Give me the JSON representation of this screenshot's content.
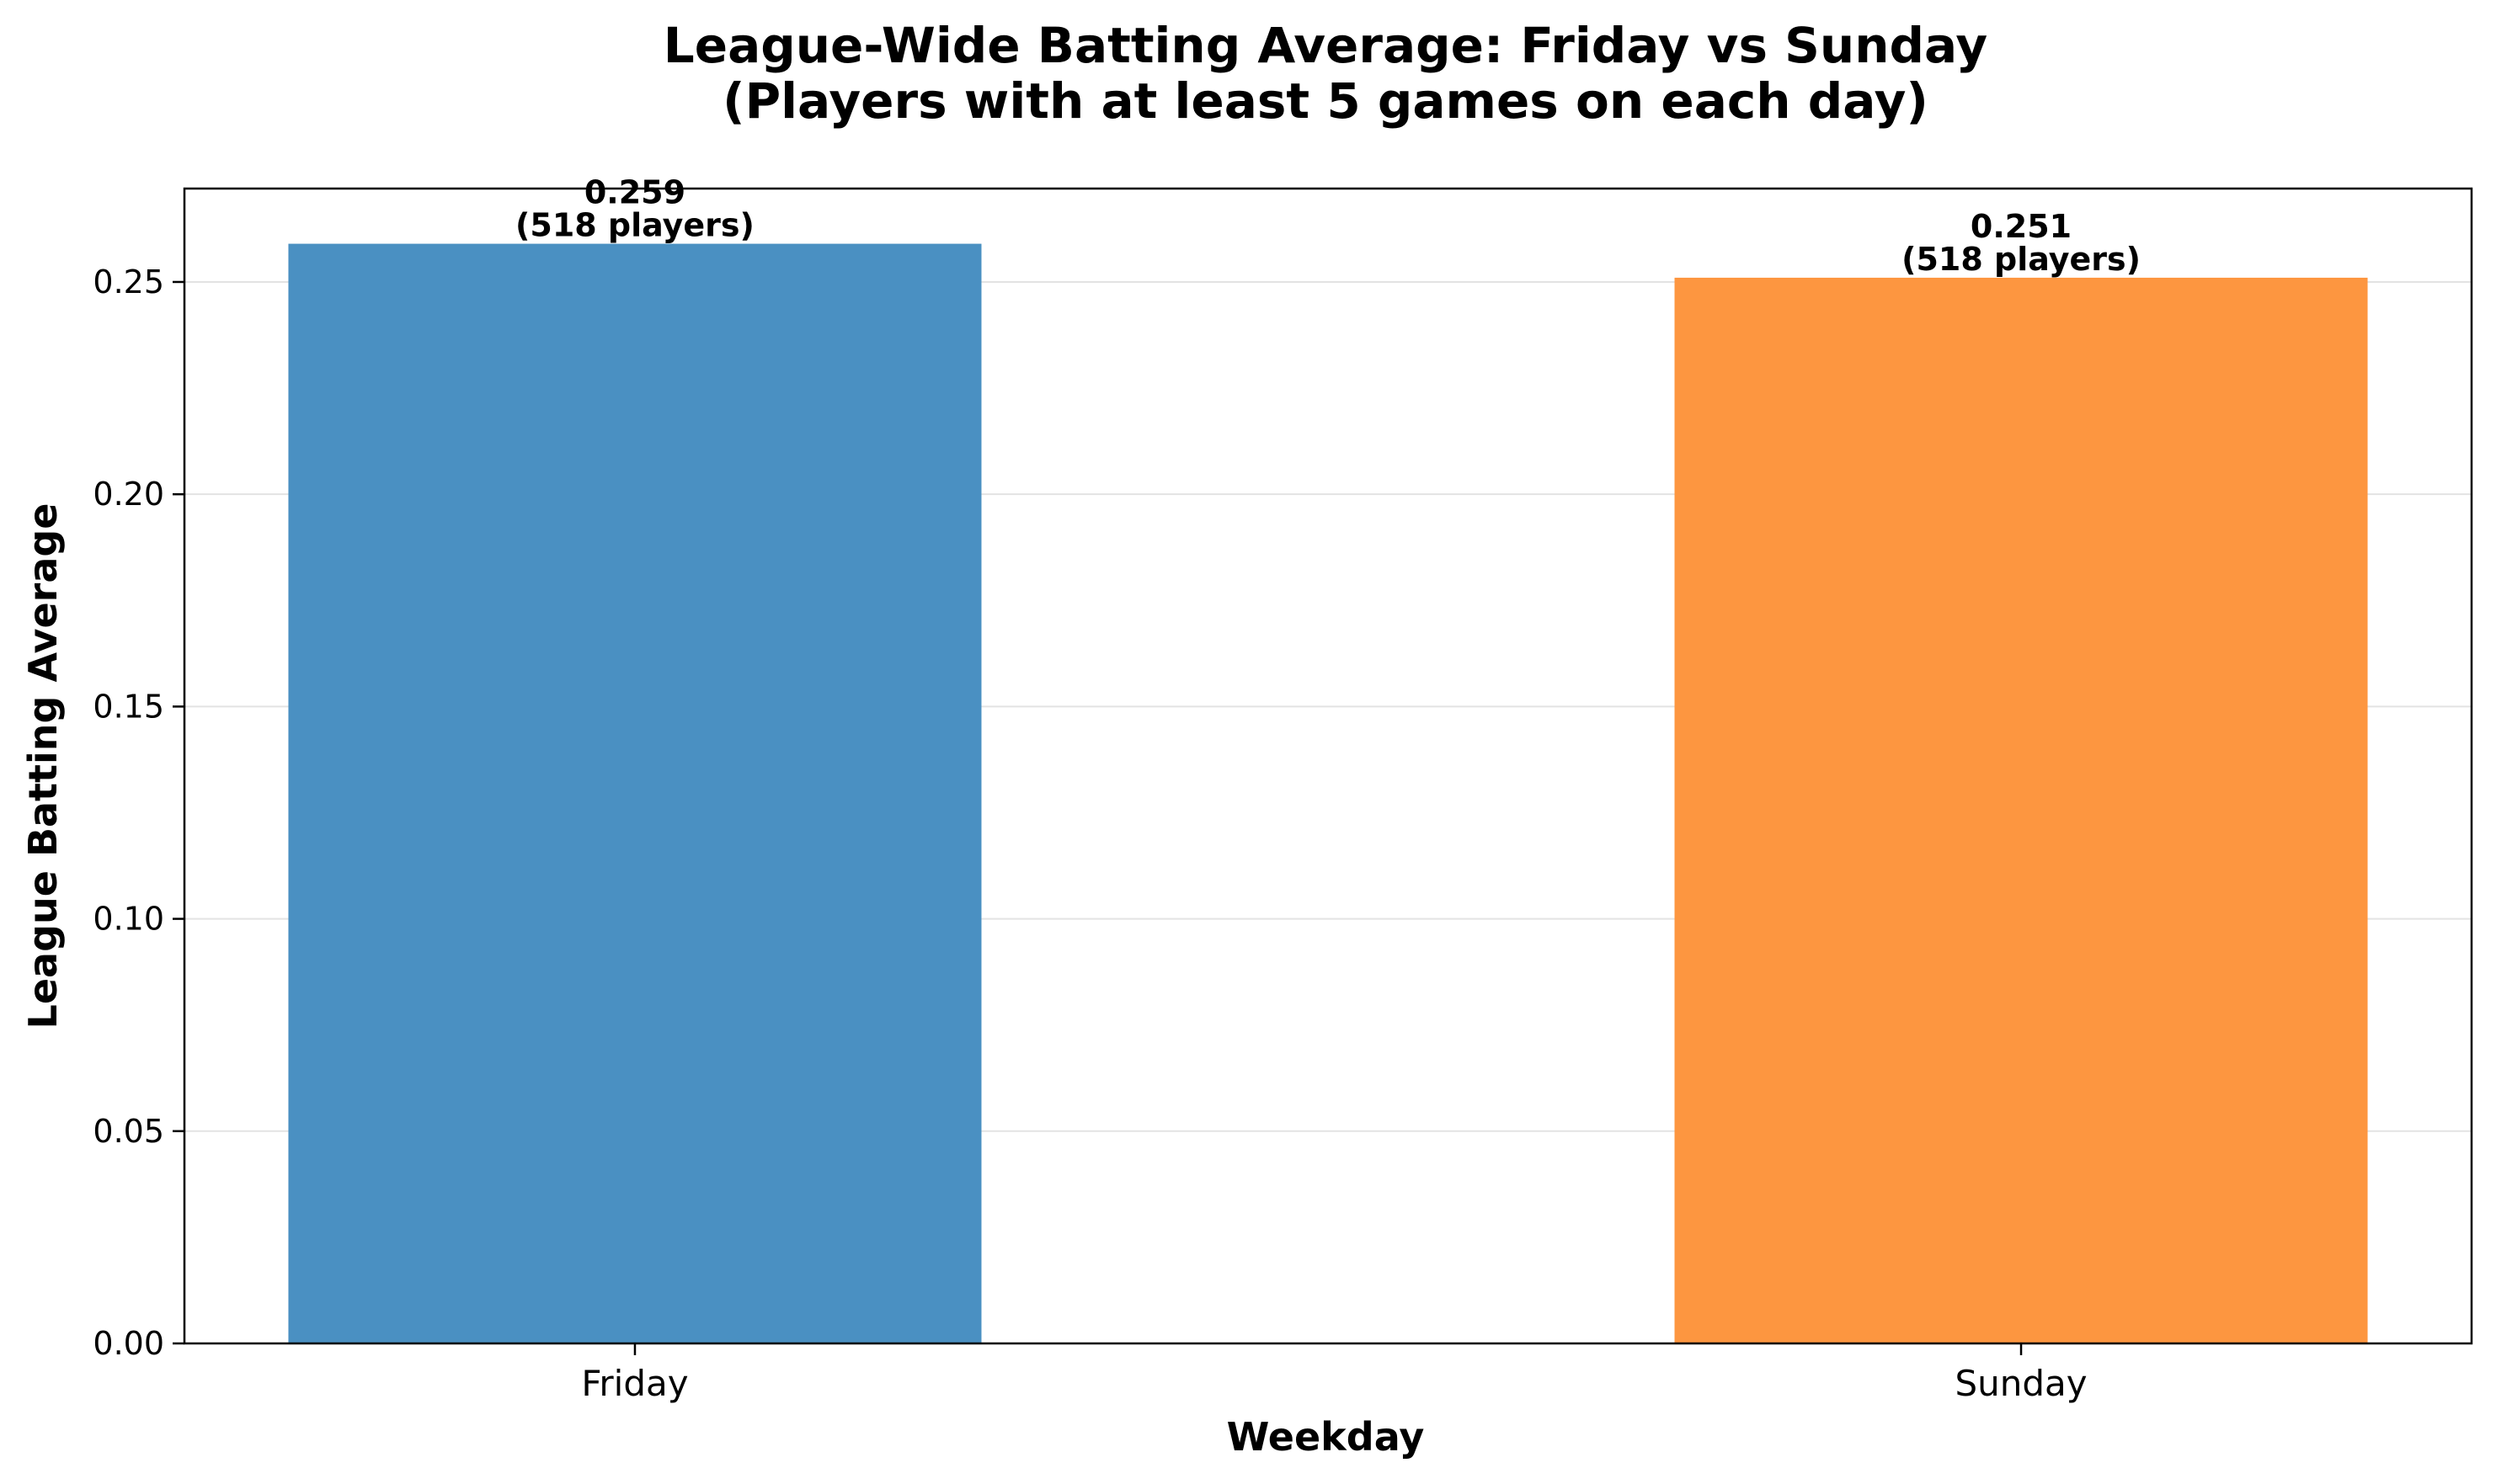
{
  "chart_data": {
    "type": "bar",
    "title": "League-Wide Batting Average: Friday vs Sunday",
    "subtitle": "(Players with at least 5 games on each day)",
    "xlabel": "Weekday",
    "ylabel": "League Batting Average",
    "categories": [
      "Friday",
      "Sunday"
    ],
    "values": [
      0.259,
      0.251
    ],
    "value_labels": [
      "0.259",
      "0.251"
    ],
    "count_labels": [
      "(518 players)",
      "(518 players)"
    ],
    "colors": [
      "#4a90c2",
      "#fd9640"
    ],
    "ylim": [
      0,
      0.272
    ],
    "yticks": [
      0.0,
      0.05,
      0.1,
      0.15,
      0.2,
      0.25
    ],
    "ytick_labels": [
      "0.00",
      "0.05",
      "0.10",
      "0.15",
      "0.20",
      "0.25"
    ],
    "grid": "y",
    "legend": "none"
  }
}
